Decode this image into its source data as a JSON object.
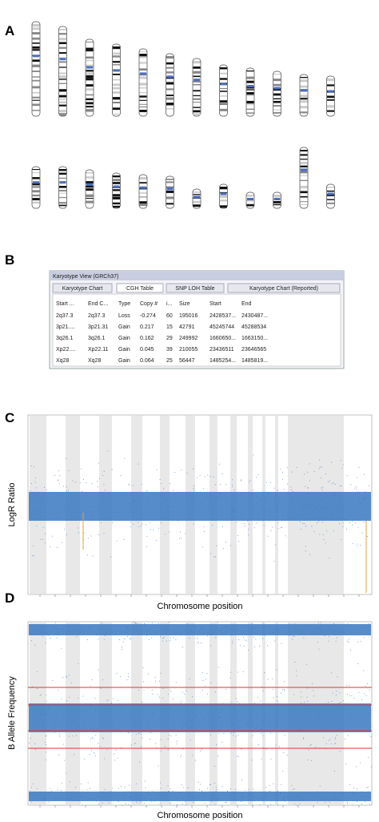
{
  "panels": [
    "A",
    "B",
    "C",
    "D"
  ],
  "table": {
    "window_title": "Karyotype View (GRCh37)",
    "tabs": [
      "Karyotype Chart",
      "CGH Table",
      "SNP LOH Table",
      "Karyotype Chart (Reported)"
    ],
    "columns": [
      "Start ...",
      "End C...",
      "Type",
      "Copy #",
      "i...",
      "Size",
      "Start",
      "End"
    ],
    "rows": [
      [
        "2q37.3",
        "2q37.3",
        "Loss",
        "-0.274",
        "60",
        "195016",
        "2428537...",
        "2430487..."
      ],
      [
        "3p21....",
        "3p21.31",
        "Gain",
        "0.217",
        "15",
        "42791",
        "45245744",
        "45288534"
      ],
      [
        "3q26.1",
        "3q26.1",
        "Gain",
        "0.162",
        "29",
        "249992",
        "1660650...",
        "1663150..."
      ],
      [
        "Xp22....",
        "Xp22.11",
        "Gain",
        "0.045",
        "39",
        "210055",
        "23436511",
        "23646565"
      ],
      [
        "Xq28",
        "Xq28",
        "Gain",
        "0.064",
        "25",
        "56447",
        "1485254...",
        "1485819..."
      ]
    ]
  },
  "chart_c": {
    "y_label": "LogR Ratio",
    "x_label": "Chromosome position"
  },
  "chart_d": {
    "y_label": "B Allele Frequency",
    "x_label": "Chromosome position"
  }
}
